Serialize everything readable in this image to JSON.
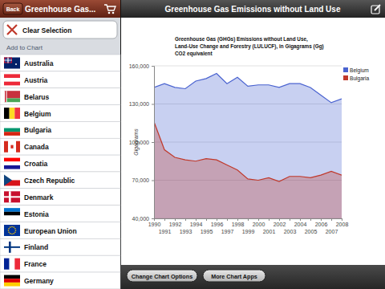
{
  "header": {
    "back": "Back",
    "left_title": "Greenhouse Gas...",
    "title": "Greenhouse Gas Emissions without Land Use"
  },
  "sidebar": {
    "clear": "Clear Selection",
    "section": "Add to Chart",
    "items": [
      "Australia",
      "Austria",
      "Belarus",
      "Belgium",
      "Bulgaria",
      "Canada",
      "Croatia",
      "Czech Republic",
      "Denmark",
      "Estonia",
      "European Union",
      "Finland",
      "France",
      "Germany"
    ]
  },
  "toolbar": {
    "buttons": [
      "Change Chart Options",
      "More Chart Apps"
    ]
  },
  "chart_data": {
    "type": "area",
    "title": [
      "Greenhouse Gas (GHGs) Emissions without Land Use,",
      "Land-Use Change and Forestry (LULUCF), in Gigagrams (Gg)",
      "CO2 equivalent"
    ],
    "y_label": "Gigagrams",
    "x": [
      1990,
      1991,
      1992,
      1993,
      1994,
      1995,
      1996,
      1997,
      1998,
      1999,
      2000,
      2001,
      2002,
      2003,
      2004,
      2005,
      2006,
      2007,
      2008
    ],
    "series": [
      {
        "name": "Belgium",
        "color": "#4a63d0",
        "values": [
          143000,
          146000,
          143000,
          142000,
          148000,
          150000,
          154000,
          146000,
          151000,
          144000,
          145000,
          145000,
          143000,
          146000,
          146000,
          143000,
          137000,
          131000,
          134000
        ]
      },
      {
        "name": "Bulgaria",
        "color": "#c0392b",
        "values": [
          116000,
          94000,
          88000,
          86000,
          85000,
          87000,
          86000,
          82000,
          78000,
          71000,
          70000,
          72000,
          69000,
          73000,
          73000,
          72000,
          74000,
          77000,
          74000
        ]
      }
    ],
    "xlim": [
      1990,
      2008
    ],
    "xticks": [
      1990,
      1991,
      1992,
      1993,
      1994,
      1995,
      1996,
      1997,
      1998,
      1999,
      2000,
      2001,
      2002,
      2003,
      2004,
      2005,
      2006,
      2007,
      2008
    ],
    "ylim": [
      40000,
      160000
    ],
    "yticks": [
      {
        "value": 40000,
        "label": "40,000"
      },
      {
        "value": 70000,
        "label": "70,000"
      },
      {
        "value": 100000,
        "label": "100,000"
      },
      {
        "value": 130000,
        "label": "130,000"
      },
      {
        "value": 160000,
        "label": "160,000"
      }
    ],
    "grid": true,
    "legend": "top-right"
  }
}
